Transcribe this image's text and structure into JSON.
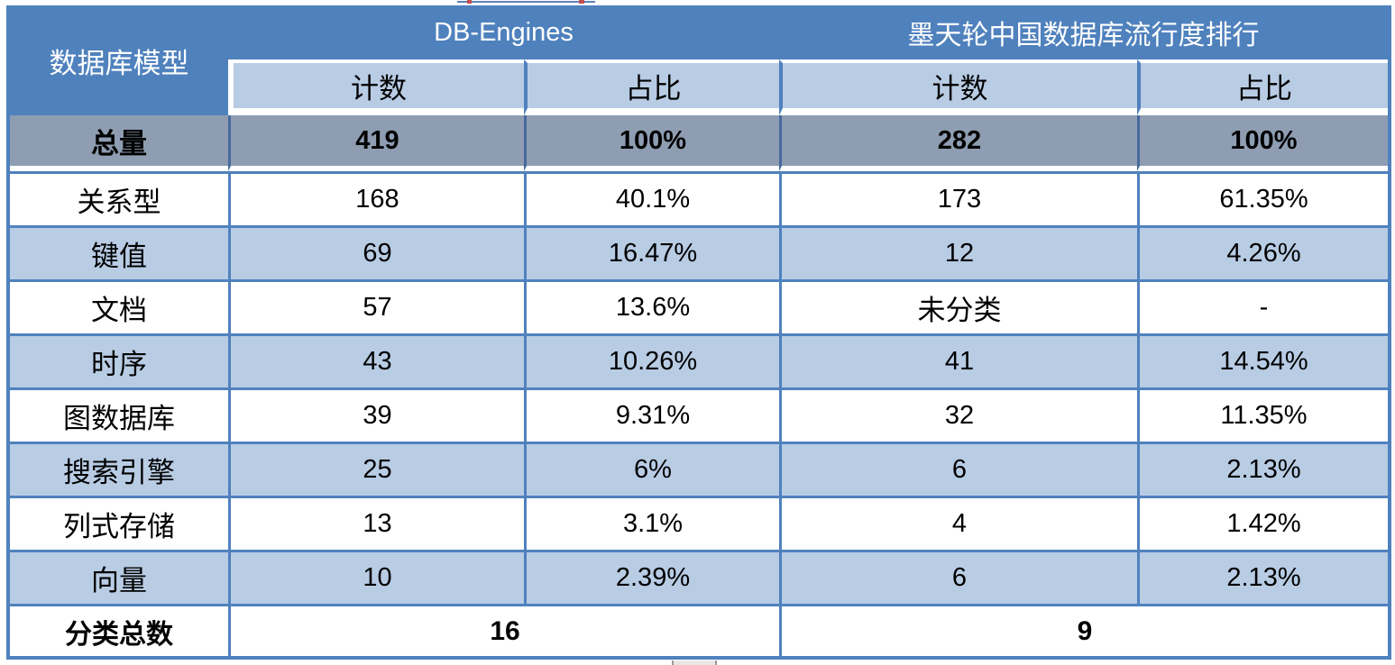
{
  "page": {
    "header": {
      "model_header": "数据库模型",
      "source1": "DB-Engines",
      "source2": "墨天轮中国数据库流行度排行",
      "count_label": "计数",
      "share_label": "占比"
    },
    "total_row": {
      "label": "总量",
      "de_count": "419",
      "de_share": "100%",
      "mt_count": "282",
      "mt_share": "100%"
    },
    "rows": [
      {
        "label": "关系型",
        "de_count": "168",
        "de_share": "40.1%",
        "mt_count": "173",
        "mt_share": "61.35%"
      },
      {
        "label": "键值",
        "de_count": "69",
        "de_share": "16.47%",
        "mt_count": "12",
        "mt_share": "4.26%"
      },
      {
        "label": "文档",
        "de_count": "57",
        "de_share": "13.6%",
        "mt_count": "未分类",
        "mt_share": "-"
      },
      {
        "label": "时序",
        "de_count": "43",
        "de_share": "10.26%",
        "mt_count": "41",
        "mt_share": "14.54%"
      },
      {
        "label": "图数据库",
        "de_count": "39",
        "de_share": "9.31%",
        "mt_count": "32",
        "mt_share": "11.35%"
      },
      {
        "label": "搜索引擎",
        "de_count": "25",
        "de_share": "6%",
        "mt_count": "6",
        "mt_share": "2.13%"
      },
      {
        "label": "列式存储",
        "de_count": "13",
        "de_share": "3.1%",
        "mt_count": "4",
        "mt_share": "1.42%"
      },
      {
        "label": "向量",
        "de_count": "10",
        "de_share": "2.39%",
        "mt_count": "6",
        "mt_share": "2.13%"
      }
    ],
    "footer_row": {
      "label": "分类总数",
      "de_total": "16",
      "mt_total": "9"
    },
    "colors": {
      "header_blue": "#4F81BD",
      "light_blue": "#B8CCE4",
      "total_gray": "#8E9DB2",
      "grid_blue": "#4F81BD",
      "artifact_red": "#C0504D"
    }
  },
  "chart_data": {
    "type": "table",
    "title": "数据库模型流行度对比：DB-Engines vs 墨天轮中国数据库流行度排行",
    "columns": [
      "数据库模型",
      "DB-Engines 计数",
      "DB-Engines 占比",
      "墨天轮 计数",
      "墨天轮 占比"
    ],
    "rows": [
      [
        "总量",
        "419",
        "100%",
        "282",
        "100%"
      ],
      [
        "关系型",
        "168",
        "40.1%",
        "173",
        "61.35%"
      ],
      [
        "键值",
        "69",
        "16.47%",
        "12",
        "4.26%"
      ],
      [
        "文档",
        "57",
        "13.6%",
        "未分类",
        "-"
      ],
      [
        "时序",
        "43",
        "10.26%",
        "41",
        "14.54%"
      ],
      [
        "图数据库",
        "39",
        "9.31%",
        "32",
        "11.35%"
      ],
      [
        "搜索引擎",
        "25",
        "6%",
        "6",
        "2.13%"
      ],
      [
        "列式存储",
        "13",
        "3.1%",
        "4",
        "1.42%"
      ],
      [
        "向量",
        "10",
        "2.39%",
        "6",
        "2.13%"
      ],
      [
        "分类总数",
        "16",
        "",
        "9",
        ""
      ]
    ],
    "legend_position": "none",
    "grid": true
  }
}
